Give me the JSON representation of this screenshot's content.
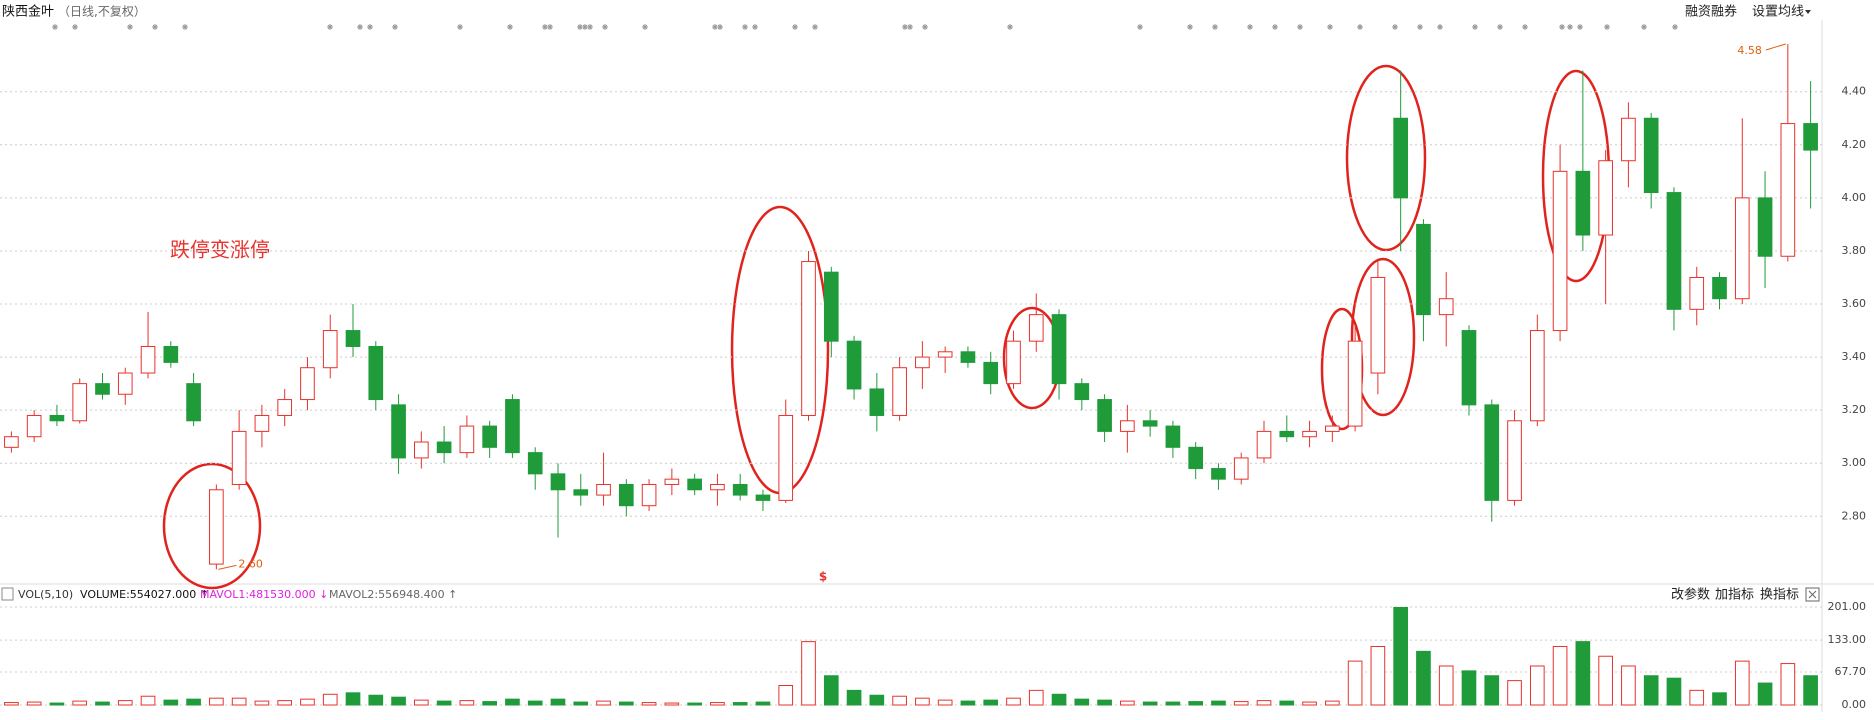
{
  "header": {
    "title": "陕西金叶",
    "subtitle": "（日线,不复权）",
    "buttons": [
      "融资融券",
      "设置均线"
    ]
  },
  "chart_data": {
    "type": "candlestick",
    "up_color": "#e8322d",
    "down_color": "#1f9b3a",
    "open": [
      3.06,
      3.1,
      3.18,
      3.16,
      3.3,
      3.26,
      3.34,
      3.44,
      3.3,
      2.62,
      2.92,
      3.12,
      3.18,
      3.24,
      3.36,
      3.5,
      3.44,
      3.22,
      3.02,
      3.08,
      3.04,
      3.14,
      3.24,
      3.04,
      2.96,
      2.9,
      2.88,
      2.92,
      2.84,
      2.92,
      2.94,
      2.9,
      2.92,
      2.88,
      2.86,
      3.18,
      3.72,
      3.46,
      3.28,
      3.18,
      3.36,
      3.4,
      3.42,
      3.38,
      3.3,
      3.46,
      3.56,
      3.3,
      3.24,
      3.12,
      3.16,
      3.14,
      3.06,
      2.98,
      2.94,
      3.02,
      3.12,
      3.1,
      3.12,
      3.14,
      3.34,
      4.3,
      3.9,
      3.56,
      3.5,
      3.22,
      2.86,
      3.16,
      3.5,
      4.1,
      3.86,
      4.14,
      4.3,
      4.02,
      3.58,
      3.7,
      3.62,
      4.0,
      3.78,
      4.28
    ],
    "high": [
      3.12,
      3.2,
      3.22,
      3.32,
      3.34,
      3.36,
      3.57,
      3.46,
      3.34,
      2.92,
      3.2,
      3.22,
      3.28,
      3.4,
      3.56,
      3.6,
      3.46,
      3.26,
      3.12,
      3.14,
      3.18,
      3.16,
      3.26,
      3.06,
      3.0,
      2.96,
      3.04,
      2.94,
      2.94,
      2.98,
      2.96,
      2.96,
      2.96,
      2.9,
      3.24,
      3.8,
      3.74,
      3.48,
      3.34,
      3.4,
      3.46,
      3.44,
      3.44,
      3.42,
      3.5,
      3.64,
      3.58,
      3.32,
      3.26,
      3.22,
      3.2,
      3.16,
      3.08,
      3.0,
      3.04,
      3.16,
      3.18,
      3.16,
      3.18,
      3.52,
      3.76,
      4.48,
      3.92,
      3.72,
      3.52,
      3.24,
      3.2,
      3.56,
      4.2,
      4.48,
      4.18,
      4.36,
      4.32,
      4.04,
      3.74,
      3.72,
      4.3,
      4.1,
      4.58,
      4.44
    ],
    "low": [
      3.04,
      3.08,
      3.14,
      3.15,
      3.24,
      3.22,
      3.32,
      3.36,
      3.14,
      2.6,
      2.9,
      3.06,
      3.14,
      3.2,
      3.32,
      3.4,
      3.2,
      2.96,
      2.98,
      3.0,
      3.02,
      3.02,
      3.02,
      2.9,
      2.72,
      2.84,
      2.84,
      2.8,
      2.82,
      2.88,
      2.88,
      2.84,
      2.86,
      2.82,
      2.85,
      3.16,
      3.4,
      3.24,
      3.12,
      3.16,
      3.28,
      3.34,
      3.36,
      3.26,
      3.28,
      3.42,
      3.24,
      3.2,
      3.08,
      3.04,
      3.1,
      3.02,
      2.94,
      2.9,
      2.92,
      3.0,
      3.08,
      3.06,
      3.08,
      3.12,
      3.26,
      3.8,
      3.46,
      3.44,
      3.18,
      2.78,
      2.84,
      3.14,
      3.46,
      3.8,
      3.6,
      4.04,
      3.96,
      3.5,
      3.52,
      3.58,
      3.6,
      3.66,
      3.76,
      3.96
    ],
    "close": [
      3.1,
      3.18,
      3.16,
      3.3,
      3.26,
      3.34,
      3.44,
      3.38,
      3.16,
      2.9,
      3.12,
      3.18,
      3.24,
      3.36,
      3.5,
      3.44,
      3.24,
      3.02,
      3.08,
      3.04,
      3.14,
      3.06,
      3.04,
      2.96,
      2.9,
      2.88,
      2.92,
      2.84,
      2.92,
      2.94,
      2.9,
      2.92,
      2.88,
      2.86,
      3.18,
      3.76,
      3.46,
      3.28,
      3.18,
      3.36,
      3.4,
      3.42,
      3.38,
      3.3,
      3.46,
      3.56,
      3.3,
      3.24,
      3.12,
      3.16,
      3.14,
      3.06,
      2.98,
      2.94,
      3.02,
      3.12,
      3.1,
      3.12,
      3.14,
      3.46,
      3.7,
      4.0,
      3.56,
      3.62,
      3.22,
      2.86,
      3.16,
      3.5,
      4.1,
      3.86,
      4.14,
      4.3,
      4.02,
      3.58,
      3.7,
      3.62,
      4.0,
      3.78,
      4.28,
      4.18
    ],
    "volume": [
      5,
      6,
      4,
      8,
      6,
      9,
      18,
      10,
      12,
      14,
      14,
      8,
      9,
      12,
      22,
      25,
      20,
      16,
      10,
      8,
      9,
      7,
      12,
      8,
      12,
      6,
      8,
      6,
      5,
      4,
      4,
      5,
      5,
      6,
      40,
      130,
      60,
      30,
      20,
      18,
      14,
      10,
      8,
      10,
      14,
      30,
      22,
      12,
      10,
      8,
      6,
      6,
      7,
      8,
      7,
      9,
      8,
      6,
      8,
      90,
      120,
      200,
      110,
      80,
      70,
      60,
      50,
      80,
      120,
      130,
      100,
      80,
      60,
      55,
      30,
      25,
      90,
      45,
      85,
      60
    ],
    "ylim": [
      2.56,
      4.61
    ],
    "yticks": [
      {
        "value": 2.8,
        "label": "2.80"
      },
      {
        "value": 3.0,
        "label": "3.00"
      },
      {
        "value": 3.2,
        "label": "3.20"
      },
      {
        "value": 3.4,
        "label": "3.40"
      },
      {
        "value": 3.6,
        "label": "3.60"
      },
      {
        "value": 3.8,
        "label": "3.80"
      },
      {
        "value": 4.0,
        "label": "4.00"
      },
      {
        "value": 4.2,
        "label": "4.20"
      },
      {
        "value": 4.4,
        "label": "4.40"
      }
    ],
    "grid": true,
    "annotation": "跌停变涨停",
    "max_label": 4.58,
    "min_label": {
      "value": 2.6,
      "label": "2.60"
    },
    "marker": "$",
    "volume_panel": {
      "indicator": "VOL(5,10)",
      "readings": [
        "VOLUME:554027.000 ↑",
        "MAVOL1:481530.000 ↓",
        "MAVOL2:556948.400 ↑"
      ],
      "buttons": [
        "改参数",
        "加指标",
        "换指标"
      ],
      "ylim": [
        0,
        201
      ],
      "yticks": [
        {
          "value": 0,
          "label": "0.00"
        },
        {
          "value": 67.7,
          "label": "67.70"
        },
        {
          "value": 133,
          "label": "133.00"
        },
        {
          "value": 201,
          "label": "201.00"
        }
      ]
    }
  }
}
